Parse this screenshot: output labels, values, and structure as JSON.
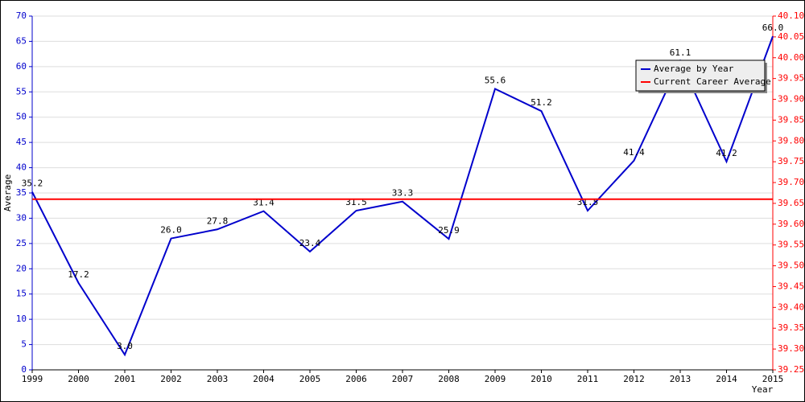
{
  "chart_data": {
    "type": "line",
    "categories": [
      "1999",
      "2000",
      "2001",
      "2002",
      "2003",
      "2004",
      "2005",
      "2006",
      "2007",
      "2008",
      "2009",
      "2010",
      "2011",
      "2012",
      "2013",
      "2014",
      "2015"
    ],
    "series": [
      {
        "name": "Average by Year",
        "color": "#0000cc",
        "values": [
          35.2,
          17.2,
          3,
          26,
          27.8,
          31.4,
          23.4,
          31.5,
          33.3,
          25.9,
          55.6,
          51.2,
          31.5,
          41.4,
          61.1,
          41.2,
          66
        ],
        "value_labels": [
          "35.2",
          "17.2",
          "3.0",
          "26.0",
          "27.8",
          "31.4",
          "23.4",
          "31.5",
          "33.3",
          "25.9",
          "55.6",
          "51.2",
          "31.5",
          "41.4",
          "61.1",
          "41.2",
          "66.0"
        ]
      },
      {
        "name": "Current Career Average",
        "color": "#ff0000",
        "axis": "y2",
        "values": [
          39.66,
          39.66,
          39.66,
          39.66,
          39.66,
          39.66,
          39.66,
          39.66,
          39.66,
          39.66,
          39.66,
          39.66,
          39.66,
          39.66,
          39.66,
          39.66,
          39.66
        ]
      }
    ],
    "xlabel": "Year",
    "ylabel": "Average",
    "ylim": [
      0,
      70
    ],
    "yticks": [
      0,
      5,
      10,
      15,
      20,
      25,
      30,
      35,
      40,
      45,
      50,
      55,
      60,
      65,
      70
    ],
    "y2lim": [
      39.25,
      40.1
    ],
    "y2ticks": [
      39.25,
      {
        "value": 39.3,
        "label": "39.30"
      },
      39.35,
      {
        "value": 39.4,
        "label": "39.40"
      },
      39.45,
      {
        "value": 39.5,
        "label": "39.50"
      },
      39.55,
      {
        "value": 39.6,
        "label": "39.60"
      },
      39.65,
      {
        "value": 39.7,
        "label": "39.70"
      },
      39.75,
      {
        "value": 39.8,
        "label": "39.80"
      },
      39.85,
      {
        "value": 39.9,
        "label": "39.90"
      },
      39.95,
      {
        "value": 40.0,
        "label": "40.00"
      },
      40.05,
      {
        "value": 40.1,
        "label": "40.10"
      }
    ],
    "grid": true,
    "legend": "upper right"
  }
}
